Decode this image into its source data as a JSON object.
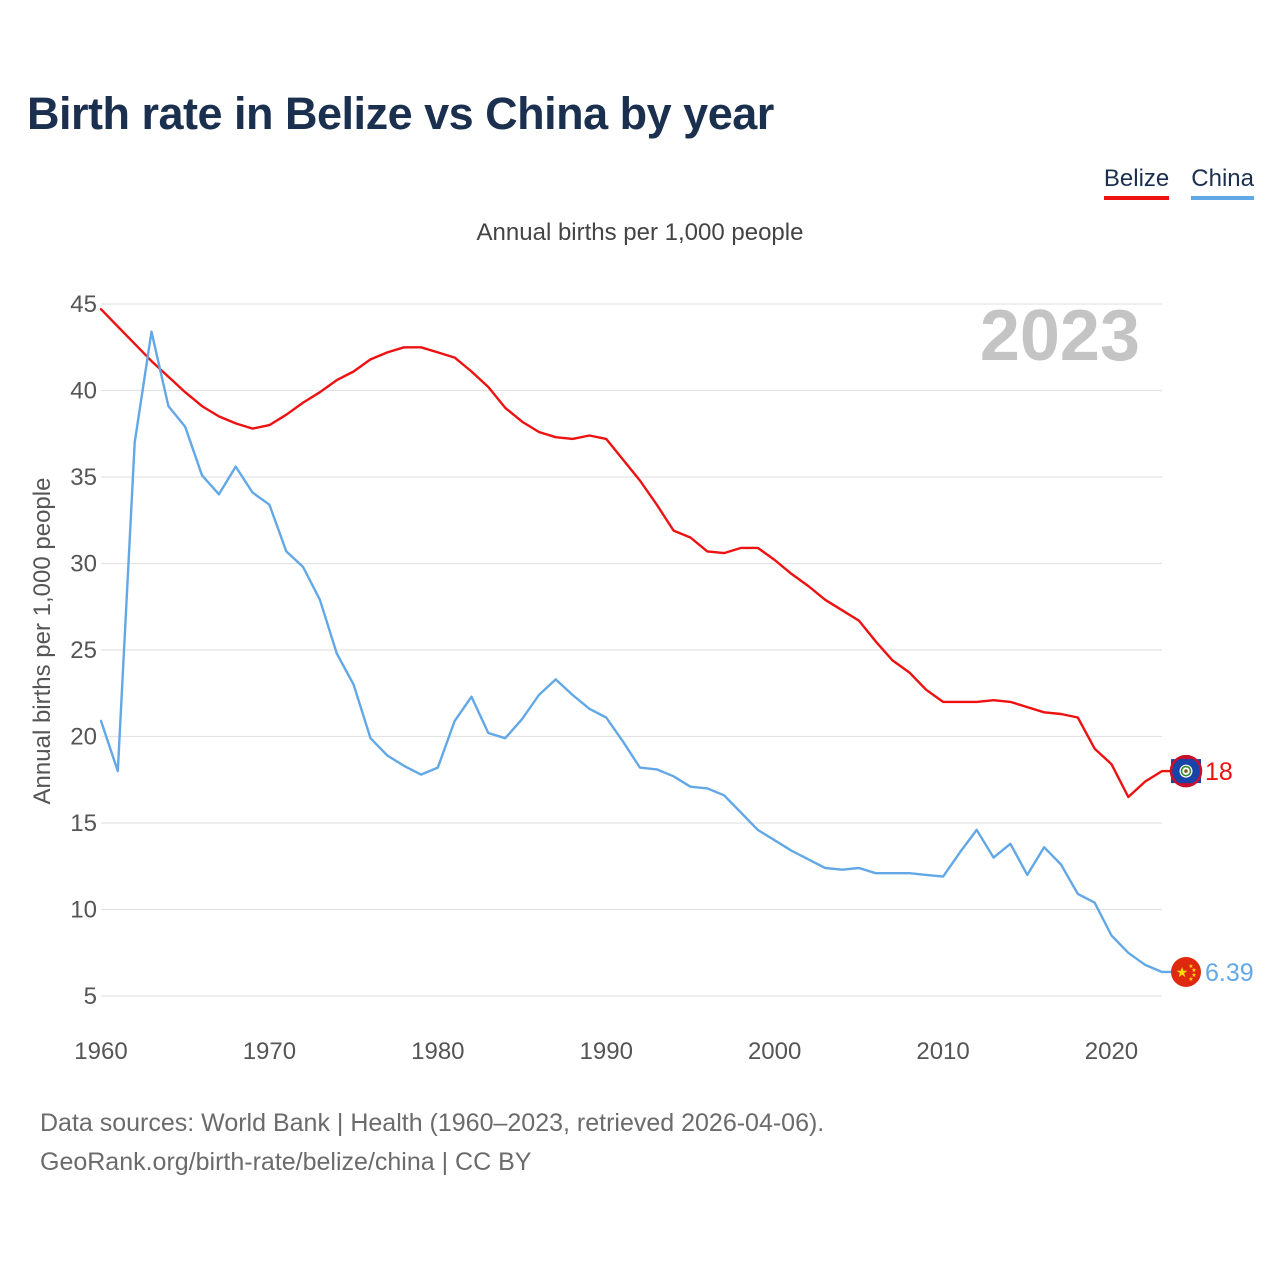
{
  "chart_data": {
    "type": "line",
    "title": "Birth rate in Belize vs China by year",
    "subtitle": "Annual births per 1,000 people",
    "ylabel": "Annual births per 1,000 people",
    "xlabel": "",
    "watermark_year": "2023",
    "xlim": [
      1960,
      2023
    ],
    "ylim": [
      5,
      45
    ],
    "x_ticks": [
      1960,
      1970,
      1980,
      1990,
      2000,
      2010,
      2020
    ],
    "y_ticks": [
      5,
      10,
      15,
      20,
      25,
      30,
      35,
      40,
      45
    ],
    "grid": true,
    "legend_position": "top-right",
    "x": [
      1960,
      1961,
      1962,
      1963,
      1964,
      1965,
      1966,
      1967,
      1968,
      1969,
      1970,
      1971,
      1972,
      1973,
      1974,
      1975,
      1976,
      1977,
      1978,
      1979,
      1980,
      1981,
      1982,
      1983,
      1984,
      1985,
      1986,
      1987,
      1988,
      1989,
      1990,
      1991,
      1992,
      1993,
      1994,
      1995,
      1996,
      1997,
      1998,
      1999,
      2000,
      2001,
      2002,
      2003,
      2004,
      2005,
      2006,
      2007,
      2008,
      2009,
      2010,
      2011,
      2012,
      2013,
      2014,
      2015,
      2016,
      2017,
      2018,
      2019,
      2020,
      2021,
      2022,
      2023
    ],
    "series": [
      {
        "name": "Belize",
        "color": "#ee1111",
        "end_label": "18",
        "flag": "belize-flag-icon",
        "values": [
          44.7,
          43.7,
          42.7,
          41.7,
          40.8,
          39.9,
          39.1,
          38.5,
          38.1,
          37.8,
          38.0,
          38.6,
          39.3,
          39.9,
          40.6,
          41.1,
          41.8,
          42.2,
          42.5,
          42.5,
          42.2,
          41.9,
          41.1,
          40.2,
          39.0,
          38.2,
          37.6,
          37.3,
          37.2,
          37.4,
          37.2,
          36.0,
          34.8,
          33.4,
          31.9,
          31.5,
          30.7,
          30.6,
          30.9,
          30.9,
          30.2,
          29.4,
          28.7,
          27.9,
          27.3,
          26.7,
          25.5,
          24.4,
          23.7,
          22.7,
          22.0,
          22.0,
          22.0,
          22.1,
          22.0,
          21.7,
          21.4,
          21.3,
          21.1,
          19.3,
          18.4,
          16.5,
          17.4,
          18.0
        ]
      },
      {
        "name": "China",
        "color": "#63a8e6",
        "end_label": "6.39",
        "flag": "china-flag-icon",
        "values": [
          20.9,
          18.0,
          37.0,
          43.4,
          39.1,
          37.9,
          35.1,
          34.0,
          35.6,
          34.1,
          33.4,
          30.7,
          29.8,
          27.9,
          24.8,
          23.0,
          19.9,
          18.9,
          18.3,
          17.8,
          18.2,
          20.9,
          22.3,
          20.2,
          19.9,
          21.0,
          22.4,
          23.3,
          22.4,
          21.6,
          21.1,
          19.7,
          18.2,
          18.1,
          17.7,
          17.1,
          17.0,
          16.6,
          15.6,
          14.6,
          14.0,
          13.4,
          12.9,
          12.4,
          12.3,
          12.4,
          12.1,
          12.1,
          12.1,
          12.0,
          11.9,
          13.3,
          14.6,
          13.0,
          13.8,
          12.0,
          13.6,
          12.6,
          10.9,
          10.4,
          8.5,
          7.5,
          6.8,
          6.39
        ]
      }
    ]
  },
  "footer": {
    "sources": "Data sources: World Bank | Health (1960–2023, retrieved 2026-04-06).",
    "link": "GeoRank.org/birth-rate/belize/china | CC BY"
  }
}
